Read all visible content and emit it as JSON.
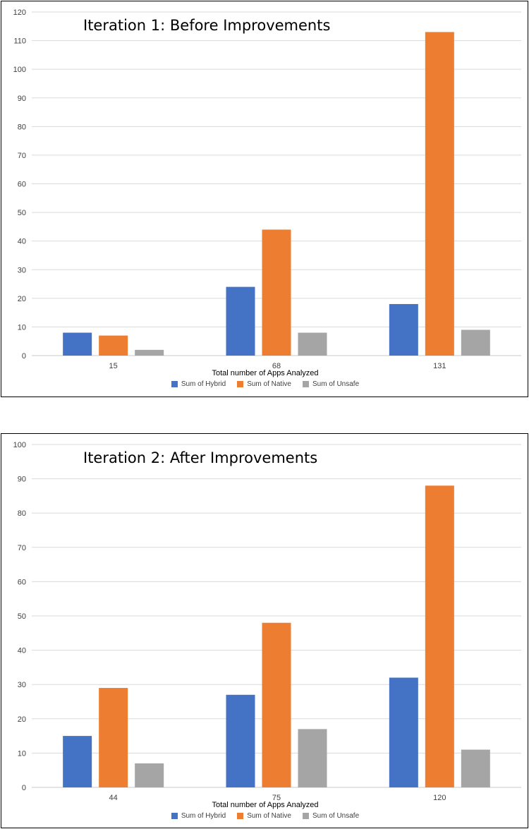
{
  "chart_data": [
    {
      "type": "bar",
      "title": "Iteration 1: Before Improvements",
      "xlabel": "Total number of Apps Analyzed",
      "ylabel": "",
      "categories": [
        "15",
        "68",
        "131"
      ],
      "series": [
        {
          "name": "Sum of Hybrid",
          "values": [
            8,
            24,
            18
          ],
          "color": "#4472c4"
        },
        {
          "name": "Sum of Native",
          "values": [
            7,
            44,
            113
          ],
          "color": "#ed7d31"
        },
        {
          "name": "Sum of Unsafe",
          "values": [
            2,
            8,
            9
          ],
          "color": "#a5a5a5"
        }
      ],
      "ylim": [
        0,
        120
      ],
      "yticks": [
        0,
        10,
        20,
        30,
        40,
        50,
        60,
        70,
        80,
        90,
        100,
        110,
        120
      ],
      "grid": true,
      "legend": "bottom"
    },
    {
      "type": "bar",
      "title": "Iteration 2: After Improvements",
      "xlabel": "Total number of Apps Analyzed",
      "ylabel": "",
      "categories": [
        "44",
        "75",
        "120"
      ],
      "series": [
        {
          "name": "Sum of Hybrid",
          "values": [
            15,
            27,
            32
          ],
          "color": "#4472c4"
        },
        {
          "name": "Sum of Native",
          "values": [
            29,
            48,
            88
          ],
          "color": "#ed7d31"
        },
        {
          "name": "Sum of Unsafe",
          "values": [
            7,
            17,
            11
          ],
          "color": "#a5a5a5"
        }
      ],
      "ylim": [
        0,
        100
      ],
      "yticks": [
        0,
        10,
        20,
        30,
        40,
        50,
        60,
        70,
        80,
        90,
        100
      ],
      "grid": true,
      "legend": "bottom"
    }
  ]
}
